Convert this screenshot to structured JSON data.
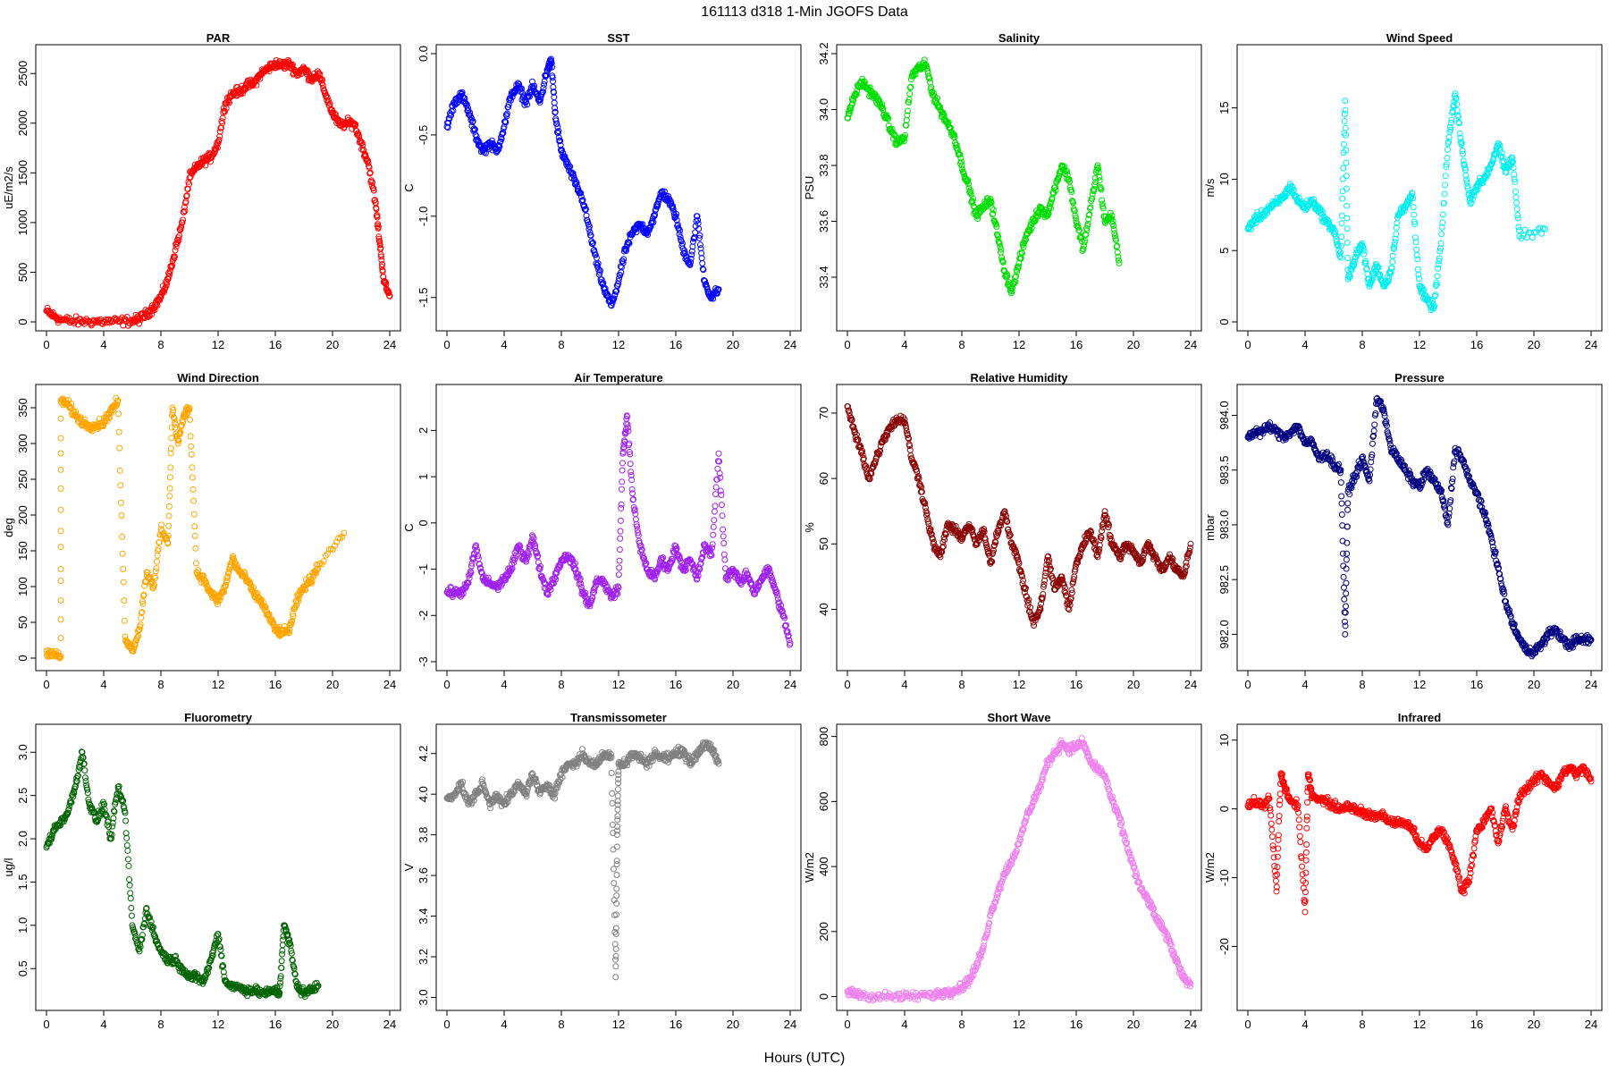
{
  "figure": {
    "title": "161113   d318   1-Min  JGOFS Data",
    "xlabel": "Hours (UTC)"
  },
  "chart_data": [
    {
      "type": "scatter",
      "title": "PAR",
      "ylabel": "uE/m2/s",
      "color": "#ff0000",
      "xlim": [
        0,
        24
      ],
      "ylim": [
        0,
        2700
      ],
      "xticks": [
        0,
        4,
        8,
        12,
        16,
        20,
        24
      ],
      "yticks": [
        0,
        500,
        1000,
        1500,
        2000,
        2500
      ],
      "x": [
        0,
        0.5,
        1,
        2,
        3,
        4,
        5,
        6,
        6.5,
        7,
        7.5,
        8,
        8.5,
        9,
        9.5,
        10,
        10.5,
        11,
        11.5,
        12,
        12.5,
        13,
        13.5,
        14,
        14.5,
        15,
        15.5,
        16,
        16.5,
        17,
        17.5,
        18,
        18.5,
        19,
        19.5,
        20,
        20.5,
        21,
        21.5,
        22,
        22.5,
        23,
        23.3,
        23.6,
        24
      ],
      "y": [
        110,
        60,
        20,
        5,
        5,
        5,
        5,
        10,
        30,
        80,
        150,
        250,
        430,
        720,
        1000,
        1450,
        1560,
        1620,
        1660,
        1800,
        2200,
        2300,
        2320,
        2380,
        2400,
        2500,
        2550,
        2600,
        2580,
        2600,
        2500,
        2550,
        2450,
        2500,
        2300,
        2100,
        1980,
        2000,
        2000,
        1800,
        1600,
        1200,
        800,
        400,
        260
      ]
    },
    {
      "type": "scatter",
      "title": "SST",
      "ylabel": "C",
      "color": "#0000ff",
      "xlim": [
        0,
        24
      ],
      "ylim": [
        -1.65,
        0.0
      ],
      "xticks": [
        0,
        4,
        8,
        12,
        16,
        20,
        24
      ],
      "yticks": [
        -1.5,
        -1.0,
        -0.5,
        0.0
      ],
      "x": [
        0,
        0.5,
        1,
        1.5,
        2,
        2.5,
        3,
        3.5,
        4,
        4.5,
        5,
        5.5,
        6,
        6.5,
        7,
        7.3,
        7.6,
        8,
        8.5,
        9,
        9.5,
        10,
        10.5,
        11,
        11.5,
        12,
        12.5,
        13,
        13.5,
        14,
        14.5,
        15,
        15.5,
        16,
        16.5,
        17,
        17.5,
        18,
        18.5,
        19
      ],
      "y": [
        -0.45,
        -0.3,
        -0.25,
        -0.35,
        -0.5,
        -0.6,
        -0.55,
        -0.6,
        -0.45,
        -0.25,
        -0.2,
        -0.3,
        -0.2,
        -0.3,
        -0.1,
        -0.05,
        -0.4,
        -0.6,
        -0.7,
        -0.8,
        -0.9,
        -1.1,
        -1.3,
        -1.45,
        -1.55,
        -1.4,
        -1.2,
        -1.1,
        -1.05,
        -1.1,
        -1.0,
        -0.85,
        -0.9,
        -1.0,
        -1.2,
        -1.3,
        -1.0,
        -1.4,
        -1.5,
        -1.45
      ]
    },
    {
      "type": "scatter",
      "title": "Salinity",
      "ylabel": "PSU",
      "color": "#00dd00",
      "xlim": [
        0,
        24
      ],
      "ylim": [
        33.24,
        34.2
      ],
      "xticks": [
        0,
        4,
        8,
        12,
        16,
        20,
        24
      ],
      "yticks": [
        33.4,
        33.6,
        33.8,
        34.0,
        34.2
      ],
      "x": [
        0,
        0.5,
        1,
        1.5,
        2,
        2.5,
        3,
        3.5,
        4,
        4.5,
        5,
        5.5,
        6,
        6.5,
        7,
        7.5,
        8,
        8.5,
        9,
        9.5,
        10,
        10.5,
        11,
        11.5,
        12,
        12.5,
        13,
        13.5,
        14,
        14.5,
        15,
        15.5,
        16,
        16.5,
        17,
        17.5,
        18,
        18.5,
        19
      ],
      "y": [
        33.97,
        34.05,
        34.1,
        34.07,
        34.04,
        34.0,
        33.93,
        33.88,
        33.9,
        34.12,
        34.15,
        34.16,
        34.05,
        34.0,
        33.95,
        33.9,
        33.8,
        33.72,
        33.62,
        33.65,
        33.68,
        33.55,
        33.42,
        33.35,
        33.45,
        33.55,
        33.6,
        33.65,
        33.62,
        33.72,
        33.8,
        33.75,
        33.6,
        33.5,
        33.65,
        33.8,
        33.6,
        33.62,
        33.45
      ]
    },
    {
      "type": "scatter",
      "title": "Wind Speed",
      "ylabel": "m/s",
      "color": "#00eeee",
      "xlim": [
        0,
        24
      ],
      "ylim": [
        0,
        18.8
      ],
      "xticks": [
        0,
        4,
        8,
        12,
        16,
        20,
        24
      ],
      "yticks": [
        0,
        5,
        10,
        15
      ],
      "x": [
        0,
        0.5,
        1,
        1.5,
        2,
        2.5,
        3,
        3.5,
        4,
        4.5,
        5,
        5.5,
        6,
        6.5,
        6.8,
        7,
        7.5,
        8,
        8.5,
        9,
        9.5,
        10,
        10.5,
        11,
        11.5,
        12,
        12.5,
        13,
        13.5,
        14,
        14.5,
        15,
        15.5,
        16,
        16.5,
        17,
        17.5,
        18,
        18.5,
        19,
        20.8
      ],
      "y": [
        6.5,
        7.2,
        7.5,
        8.0,
        8.3,
        8.8,
        9.5,
        8.5,
        8.0,
        8.5,
        7.8,
        7.0,
        6.5,
        4.5,
        15.5,
        3.0,
        4.5,
        5.5,
        2.5,
        4.0,
        2.5,
        3.5,
        7.5,
        8.0,
        9.0,
        2.5,
        1.5,
        1.0,
        5.5,
        12.5,
        16.0,
        12.0,
        8.5,
        9.5,
        10.0,
        11.0,
        12.5,
        10.5,
        11.5,
        6.0,
        6.5
      ]
    },
    {
      "type": "scatter",
      "title": "Wind Direction",
      "ylabel": "deg",
      "color": "#ffa500",
      "xlim": [
        0,
        24
      ],
      "ylim": [
        -5,
        370
      ],
      "xticks": [
        0,
        4,
        8,
        12,
        16,
        20,
        24
      ],
      "yticks": [
        0,
        50,
        100,
        150,
        200,
        250,
        300,
        350
      ],
      "x": [
        0,
        0.5,
        1,
        1,
        1.5,
        2,
        2.5,
        3,
        3.5,
        4,
        4.5,
        5,
        5.5,
        6,
        6.5,
        7,
        7.5,
        8,
        8.5,
        8.8,
        9.2,
        9.6,
        10,
        10.5,
        11,
        11.5,
        12,
        12.5,
        13,
        13.5,
        14,
        14.5,
        15,
        15.5,
        16,
        16.5,
        17,
        17.5,
        18,
        18.5,
        19,
        20.8
      ],
      "y": [
        10,
        5,
        2,
        360,
        355,
        340,
        330,
        325,
        325,
        330,
        345,
        360,
        30,
        10,
        40,
        120,
        100,
        180,
        160,
        350,
        300,
        340,
        350,
        120,
        110,
        90,
        80,
        100,
        140,
        120,
        110,
        90,
        80,
        60,
        40,
        35,
        40,
        80,
        100,
        110,
        130,
        175
      ]
    },
    {
      "type": "scatter",
      "title": "Air Temperature",
      "ylabel": "C",
      "color": "#a020f0",
      "xlim": [
        0,
        24
      ],
      "ylim": [
        -3,
        2.8
      ],
      "xticks": [
        0,
        4,
        8,
        12,
        16,
        20,
        24
      ],
      "yticks": [
        -3,
        -2,
        -1,
        0,
        1,
        2
      ],
      "x": [
        0,
        0.5,
        1,
        1.5,
        2,
        2.5,
        3,
        3.5,
        4,
        4.5,
        5,
        5.5,
        6,
        6.5,
        7,
        7.5,
        8,
        8.5,
        9,
        9.5,
        10,
        10.5,
        11,
        11.5,
        12,
        12.3,
        12.6,
        13,
        13.5,
        14,
        14.5,
        15,
        15.5,
        16,
        16.5,
        17,
        17.5,
        18,
        18.5,
        19,
        19.5,
        20,
        20.5,
        21,
        21.5,
        22,
        22.5,
        23,
        23.5,
        24
      ],
      "y": [
        -1.5,
        -1.5,
        -1.5,
        -1.3,
        -0.5,
        -1.2,
        -1.3,
        -1.4,
        -1.2,
        -1.0,
        -0.5,
        -0.8,
        -0.3,
        -1.0,
        -1.5,
        -1.2,
        -0.8,
        -0.7,
        -1.0,
        -1.5,
        -1.8,
        -1.2,
        -1.3,
        -1.6,
        -1.4,
        1.5,
        2.3,
        0.5,
        -0.5,
        -1.0,
        -1.2,
        -0.8,
        -1.0,
        -0.5,
        -1.0,
        -0.8,
        -1.2,
        -0.5,
        -0.7,
        1.5,
        -1.2,
        -1.0,
        -1.3,
        -1.1,
        -1.5,
        -1.2,
        -1.0,
        -1.5,
        -2.0,
        -2.6
      ]
    },
    {
      "type": "scatter",
      "title": "Relative Humidity",
      "ylabel": "%",
      "color": "#8b0000",
      "xlim": [
        0,
        24
      ],
      "ylim": [
        32,
        73
      ],
      "xticks": [
        0,
        4,
        8,
        12,
        16,
        20,
        24
      ],
      "yticks": [
        40,
        50,
        60,
        70
      ],
      "x": [
        0,
        0.5,
        1,
        1.5,
        2,
        2.5,
        3,
        3.5,
        4,
        4.5,
        5,
        5.5,
        6,
        6.5,
        7,
        7.5,
        8,
        8.5,
        9,
        9.5,
        10,
        10.5,
        11,
        11.5,
        12,
        12.5,
        13,
        13.5,
        14,
        14.5,
        15,
        15.5,
        16,
        16.5,
        17,
        17.5,
        18,
        18.5,
        19,
        19.5,
        20,
        20.5,
        21,
        21.5,
        22,
        22.5,
        23,
        23.5,
        24
      ],
      "y": [
        71,
        67,
        64,
        60,
        63,
        66,
        68,
        69,
        69,
        63,
        60,
        55,
        50,
        48,
        53,
        52,
        51,
        53,
        50,
        52,
        47,
        52,
        55,
        50,
        47,
        42,
        38,
        40,
        48,
        43,
        45,
        40,
        47,
        50,
        52,
        48,
        55,
        50,
        48,
        50,
        49,
        47,
        50,
        48,
        46,
        48,
        46,
        45,
        50
      ]
    },
    {
      "type": "scatter",
      "title": "Pressure",
      "ylabel": "mbar",
      "color": "#000080",
      "xlim": [
        0,
        24
      ],
      "ylim": [
        981.75,
        984.2
      ],
      "xticks": [
        0,
        4,
        8,
        12,
        16,
        20,
        24
      ],
      "yticks": [
        982.0,
        982.5,
        983.0,
        983.5,
        984.0
      ],
      "x": [
        0,
        0.5,
        1,
        1.5,
        2,
        2.5,
        3,
        3.5,
        4,
        4.5,
        5,
        5.5,
        6,
        6.5,
        6.8,
        7,
        7.5,
        8,
        8.5,
        9,
        9.5,
        10,
        10.5,
        11,
        11.5,
        12,
        12.5,
        13,
        13.5,
        14,
        14.5,
        15,
        15.5,
        16,
        16.5,
        17,
        17.5,
        18,
        18.5,
        19,
        19.5,
        20,
        20.5,
        21,
        21.5,
        22,
        22.5,
        23,
        23.5,
        24
      ],
      "y": [
        983.8,
        983.85,
        983.85,
        983.9,
        983.85,
        983.8,
        983.85,
        983.9,
        983.75,
        983.75,
        983.6,
        983.65,
        983.55,
        983.5,
        982.0,
        983.3,
        983.45,
        983.6,
        983.4,
        984.15,
        984.05,
        983.7,
        983.6,
        983.5,
        983.4,
        983.35,
        983.5,
        983.4,
        983.3,
        983.0,
        983.7,
        983.6,
        983.4,
        983.3,
        983.1,
        982.9,
        982.6,
        982.3,
        982.1,
        981.95,
        981.85,
        981.85,
        981.9,
        982.0,
        982.05,
        981.95,
        981.9,
        981.95,
        981.95,
        981.95
      ]
    },
    {
      "type": "scatter",
      "title": "Fluorometry",
      "ylabel": "ug/l",
      "color": "#006400",
      "xlim": [
        0,
        24
      ],
      "ylim": [
        0.12,
        3.22
      ],
      "xticks": [
        0,
        4,
        8,
        12,
        16,
        20,
        24
      ],
      "yticks": [
        0.5,
        1.0,
        1.5,
        2.0,
        2.5,
        3.0
      ],
      "x": [
        0,
        0.5,
        1,
        1.5,
        2,
        2.5,
        3,
        3.5,
        4,
        4.5,
        5,
        5.5,
        6,
        6.5,
        7,
        7.5,
        8,
        8.5,
        9,
        9.5,
        10,
        10.5,
        11,
        11.5,
        12,
        12.5,
        13,
        13.5,
        14,
        14.5,
        15,
        15.5,
        16,
        16.3,
        16.6,
        17,
        17.5,
        18,
        18.5,
        19
      ],
      "y": [
        1.9,
        2.1,
        2.2,
        2.3,
        2.6,
        3.0,
        2.4,
        2.2,
        2.4,
        2.0,
        2.6,
        2.3,
        1.0,
        0.7,
        1.2,
        0.9,
        0.7,
        0.6,
        0.6,
        0.5,
        0.4,
        0.4,
        0.35,
        0.6,
        0.9,
        0.35,
        0.3,
        0.28,
        0.25,
        0.25,
        0.22,
        0.22,
        0.25,
        0.22,
        1.0,
        0.8,
        0.3,
        0.22,
        0.25,
        0.3
      ]
    },
    {
      "type": "scatter",
      "title": "Transmissometer",
      "ylabel": "V",
      "color": "#808080",
      "xlim": [
        0,
        24
      ],
      "ylim": [
        2.98,
        4.3
      ],
      "xticks": [
        0,
        4,
        8,
        12,
        16,
        20,
        24
      ],
      "yticks": [
        3.0,
        3.2,
        3.4,
        3.6,
        3.8,
        4.0,
        4.2
      ],
      "x": [
        0,
        0.5,
        1,
        1.5,
        2,
        2.5,
        3,
        3.5,
        4,
        4.5,
        5,
        5.5,
        6,
        6.5,
        7,
        7.5,
        8,
        8.5,
        9,
        9.5,
        10,
        10.5,
        11,
        11.5,
        11.8,
        11.9,
        12,
        12.5,
        13,
        13.5,
        14,
        14.5,
        15,
        15.5,
        16,
        16.5,
        17,
        17.5,
        18,
        18.5,
        19
      ],
      "y": [
        3.98,
        4.0,
        4.05,
        3.95,
        4.0,
        4.05,
        3.95,
        4.0,
        3.95,
        4.0,
        4.05,
        4.0,
        4.1,
        4.0,
        4.05,
        4.0,
        4.1,
        4.15,
        4.15,
        4.2,
        4.15,
        4.15,
        4.2,
        4.18,
        3.1,
        3.8,
        4.15,
        4.15,
        4.2,
        4.18,
        4.15,
        4.2,
        4.18,
        4.18,
        4.2,
        4.22,
        4.15,
        4.2,
        4.25,
        4.22,
        4.15
      ]
    },
    {
      "type": "scatter",
      "title": "Short Wave",
      "ylabel": "W/m2",
      "color": "#ee82ee",
      "xlim": [
        0,
        24
      ],
      "ylim": [
        -15,
        810
      ],
      "xticks": [
        0,
        4,
        8,
        12,
        16,
        20,
        24
      ],
      "yticks": [
        0,
        200,
        400,
        600,
        800
      ],
      "x": [
        0,
        0.5,
        1,
        2,
        3,
        4,
        5,
        6,
        6.5,
        7,
        7.5,
        8,
        8.5,
        9,
        9.5,
        10,
        10.5,
        11,
        11.5,
        12,
        12.5,
        13,
        13.5,
        14,
        14.5,
        15,
        15.5,
        16,
        16.5,
        17,
        17.5,
        18,
        18.5,
        19,
        19.5,
        20,
        20.5,
        21,
        21.5,
        22,
        22.5,
        23,
        23.5,
        24
      ],
      "y": [
        15,
        10,
        5,
        0,
        0,
        0,
        2,
        5,
        10,
        15,
        20,
        30,
        50,
        90,
        150,
        250,
        320,
        380,
        420,
        470,
        550,
        600,
        650,
        720,
        750,
        780,
        760,
        770,
        780,
        720,
        700,
        680,
        600,
        550,
        470,
        400,
        330,
        300,
        250,
        210,
        170,
        110,
        60,
        40
      ]
    },
    {
      "type": "scatter",
      "title": "Infrared",
      "ylabel": "W/m2",
      "color": "#ff0000",
      "xlim": [
        0,
        24
      ],
      "ylim": [
        -28,
        11
      ],
      "xticks": [
        0,
        4,
        8,
        12,
        16,
        20,
        24
      ],
      "yticks": [
        -20,
        -10,
        0,
        10
      ],
      "x": [
        0,
        0.5,
        1,
        1.5,
        2,
        2.3,
        2.6,
        3,
        3.5,
        4,
        4.2,
        4.5,
        5,
        5.5,
        6,
        6.5,
        7,
        7.5,
        8,
        8.5,
        9,
        9.5,
        10,
        10.5,
        11,
        11.5,
        12,
        12.5,
        13,
        13.5,
        14,
        14.5,
        15,
        15.5,
        16,
        16.5,
        17,
        17.5,
        18,
        18.5,
        19,
        19.5,
        20,
        20.5,
        21,
        21.5,
        22,
        22.5,
        23,
        23.5,
        24
      ],
      "y": [
        0.5,
        1.0,
        0.5,
        1.5,
        -12,
        5,
        3,
        1,
        0.5,
        -15,
        5,
        2,
        1.5,
        1,
        0.5,
        0,
        0.5,
        0,
        -0.5,
        -1,
        -1,
        -1,
        -2,
        -2,
        -2,
        -3,
        -5,
        -6,
        -4,
        -3,
        -5,
        -8,
        -12,
        -10,
        -3,
        -2,
        0,
        -5,
        0,
        -3,
        2,
        3,
        4,
        5,
        4,
        3,
        5,
        6,
        5,
        6,
        4
      ]
    }
  ]
}
